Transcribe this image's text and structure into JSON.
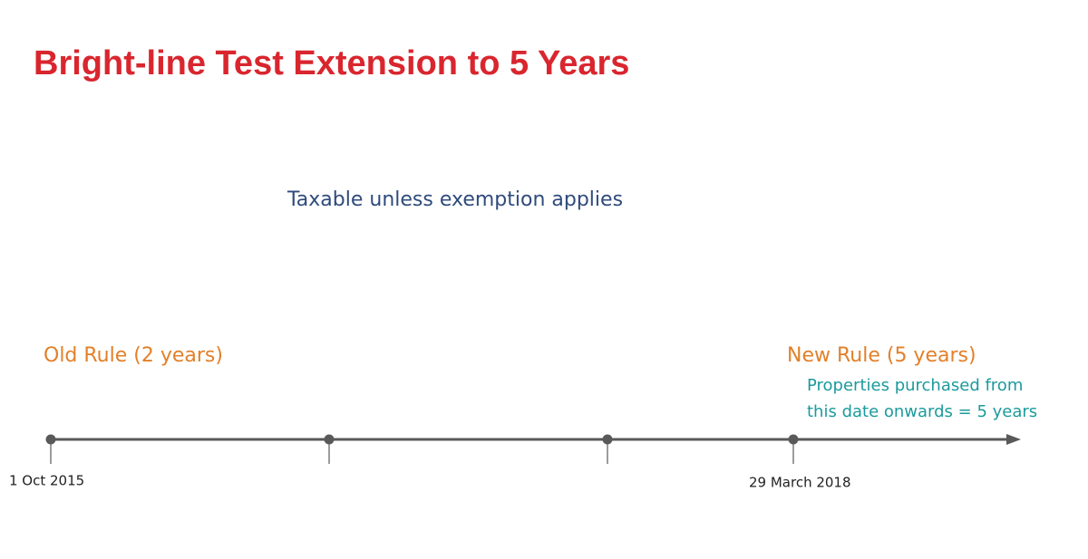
{
  "header": {
    "title": "Bright-line Test Extension to 5 Years"
  },
  "subtitle": "Taxable unless exemption applies",
  "old_rule": {
    "label": "Old Rule (2 years)"
  },
  "new_rule": {
    "label": "New Rule (5 years)",
    "note": [
      "Properties purchased from",
      "this date onwards = 5 years"
    ]
  },
  "timeline": {
    "start": "1 Oct 2015",
    "change": "29 March 2018"
  }
}
